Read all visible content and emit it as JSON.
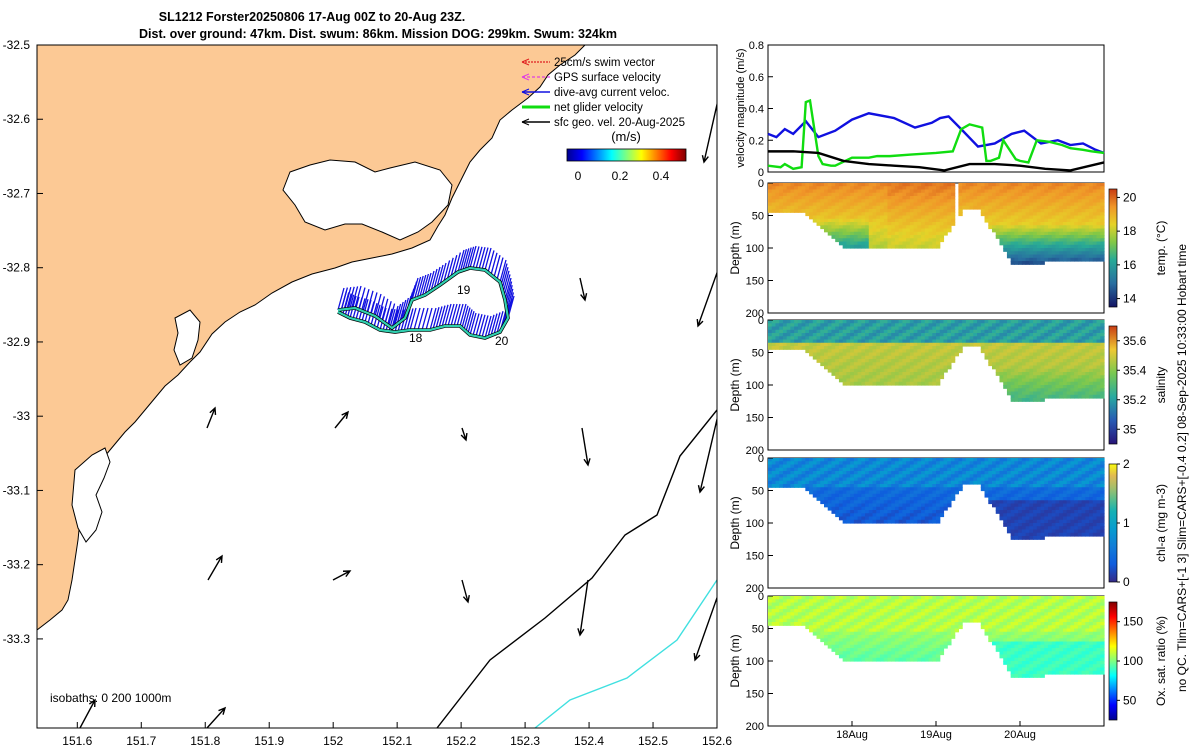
{
  "colors": {
    "land": "#fcc995",
    "swim_vector": "#e02020",
    "gps_velocity": "#e040e0",
    "dive_avg": "#1010e0",
    "net_glider": "#10dd10",
    "sfc_geo": "#000000",
    "isobath_200": "#000000",
    "isobath_1000": "#40e0e0"
  },
  "title": {
    "line1": "SL1212 Forster20250806 17-Aug 00Z to 20-Aug 23Z.",
    "line2": "Dist. over ground: 47km. Dist. swum: 86km. Mission DOG: 299km. Swum: 324km"
  },
  "map": {
    "xticks": [
      "151.6",
      "151.7",
      "151.8",
      "151.9",
      "152",
      "152.1",
      "152.2",
      "152.3",
      "152.4",
      "152.5",
      "152.6"
    ],
    "yticks": [
      "-32.5",
      "-32.6",
      "-32.7",
      "-32.8",
      "-32.9",
      "-33",
      "-33.1",
      "-33.2",
      "-33.3"
    ],
    "isobaths_label": "isobaths: 0   200  1000m",
    "day_labels": [
      "18",
      "19",
      "20"
    ],
    "legend": [
      {
        "key": "swim",
        "label": "25cm/s swim vector"
      },
      {
        "key": "gps",
        "label": "GPS surface velocity"
      },
      {
        "key": "diveavg",
        "label": "dive-avg current veloc."
      },
      {
        "key": "net",
        "label": "net glider velocity"
      },
      {
        "key": "sfc",
        "label": "sfc geo. vel. 20-Aug-2025"
      }
    ],
    "colorbar": {
      "label": "(m/s)",
      "ticks": [
        "0",
        "0.2",
        "0.4"
      ]
    }
  },
  "chart_data": [
    {
      "type": "line",
      "title": "",
      "ylabel": "velocity magnitude (m/s)",
      "ylim": [
        0,
        0.8
      ],
      "yticks": [
        "0",
        "0.2",
        "0.4",
        "0.6",
        "0.8"
      ],
      "xlim_days": [
        17.0,
        21.0
      ],
      "series": [
        {
          "name": "dive-avg current veloc.",
          "x": [
            17.0,
            17.1,
            17.2,
            17.3,
            17.45,
            17.6,
            17.8,
            18.0,
            18.2,
            18.5,
            18.75,
            18.95,
            19.05,
            19.15,
            19.3,
            19.5,
            19.7,
            19.9,
            20.05,
            20.25,
            20.45,
            20.6,
            20.75,
            20.9,
            21.0
          ],
          "y": [
            0.24,
            0.22,
            0.27,
            0.24,
            0.32,
            0.22,
            0.26,
            0.33,
            0.37,
            0.34,
            0.28,
            0.31,
            0.34,
            0.35,
            0.27,
            0.16,
            0.18,
            0.24,
            0.26,
            0.18,
            0.2,
            0.17,
            0.18,
            0.14,
            0.12
          ]
        },
        {
          "name": "net glider velocity",
          "x": [
            17.0,
            17.15,
            17.2,
            17.3,
            17.4,
            17.45,
            17.5,
            17.6,
            17.65,
            17.75,
            17.8,
            18.0,
            18.2,
            18.3,
            18.45,
            18.7,
            19.0,
            19.2,
            19.3,
            19.4,
            19.55,
            19.6,
            19.65,
            19.75,
            19.8,
            19.95,
            20.0,
            20.1,
            20.2,
            20.35,
            20.5,
            20.6,
            20.75,
            20.85,
            21.0
          ],
          "y": [
            0.04,
            0.03,
            0.05,
            0.02,
            0.03,
            0.44,
            0.45,
            0.1,
            0.05,
            0.04,
            0.04,
            0.09,
            0.09,
            0.1,
            0.1,
            0.11,
            0.12,
            0.13,
            0.27,
            0.3,
            0.28,
            0.07,
            0.07,
            0.09,
            0.2,
            0.08,
            0.07,
            0.06,
            0.2,
            0.19,
            0.17,
            0.15,
            0.14,
            0.13,
            0.12
          ]
        },
        {
          "name": "sfc geo. vel.",
          "x": [
            17.0,
            17.3,
            17.6,
            17.9,
            18.2,
            18.5,
            18.8,
            19.1,
            19.4,
            19.7,
            20.0,
            20.3,
            20.6,
            21.0
          ],
          "y": [
            0.13,
            0.13,
            0.12,
            0.07,
            0.05,
            0.04,
            0.03,
            0.01,
            0.05,
            0.05,
            0.04,
            0.02,
            0.01,
            0.06
          ]
        }
      ]
    },
    {
      "type": "heatmap",
      "variable": "temperature",
      "ylabel": "Depth (m)",
      "clabel": "temp. (°C)",
      "ylim": [
        200,
        0
      ],
      "yticks": [
        "0",
        "50",
        "100",
        "150",
        "200"
      ],
      "clim": [
        13.5,
        20.5
      ],
      "cticks": [
        "14",
        "16",
        "18",
        "20"
      ]
    },
    {
      "type": "heatmap",
      "variable": "salinity",
      "ylabel": "Depth (m)",
      "clabel": "salinity",
      "ylim": [
        200,
        0
      ],
      "yticks": [
        "0",
        "50",
        "100",
        "150",
        "200"
      ],
      "clim": [
        34.9,
        35.7
      ],
      "cticks": [
        "35",
        "35.2",
        "35.4",
        "35.6"
      ]
    },
    {
      "type": "heatmap",
      "variable": "chlorophyll-a",
      "ylabel": "Depth (m)",
      "clabel": "chl-a (mg m-3)",
      "ylim": [
        200,
        0
      ],
      "yticks": [
        "0",
        "50",
        "100",
        "150",
        "200"
      ],
      "clim": [
        0,
        2
      ],
      "cticks": [
        "0",
        "1",
        "2"
      ]
    },
    {
      "type": "heatmap",
      "variable": "oxygen saturation",
      "ylabel": "Depth (m)",
      "clabel": "Ox. sat. ratio (%)",
      "ylim": [
        200,
        0
      ],
      "yticks": [
        "0",
        "50",
        "100",
        "150",
        "200"
      ],
      "clim": [
        25,
        175
      ],
      "cticks": [
        "50",
        "100",
        "150"
      ],
      "xticks": [
        "18Aug",
        "19Aug",
        "20Aug"
      ]
    }
  ],
  "side_text": {
    "line1": "no QC. Tlim=CARS+[-1 3] Slim=CARS+[-0.4 0.2] 08-Sep-2025 10:33:00 Hobart time"
  }
}
